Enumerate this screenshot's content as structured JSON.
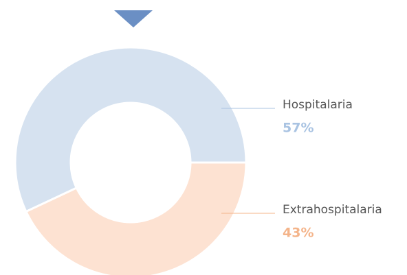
{
  "chart_data": {
    "type": "pie",
    "categories": [
      "Hospitalaria",
      "Extrahospitalaria"
    ],
    "values": [
      57,
      43
    ],
    "value_labels": [
      "57%",
      "43%"
    ],
    "colors": [
      "#d6e2f0",
      "#fde2d2"
    ],
    "label_colors": [
      "#a9c3e2",
      "#f4b48a"
    ]
  }
}
